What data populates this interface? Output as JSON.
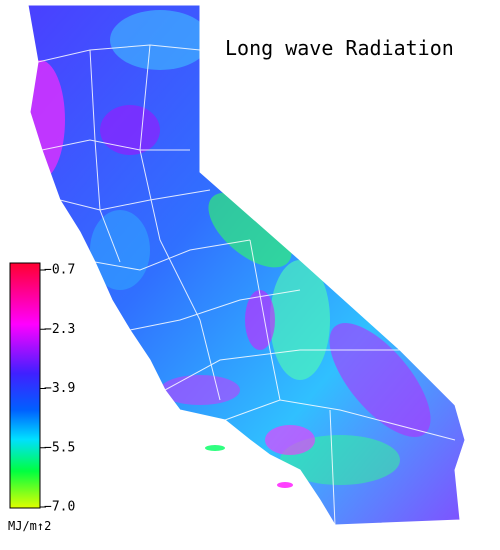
{
  "title": "Long wave Radiation",
  "legend": {
    "ticks": [
      "−0.7",
      "−2.3",
      "−3.9",
      "−5.5",
      "−7.0"
    ],
    "unit": "MJ/m↑2"
  }
}
